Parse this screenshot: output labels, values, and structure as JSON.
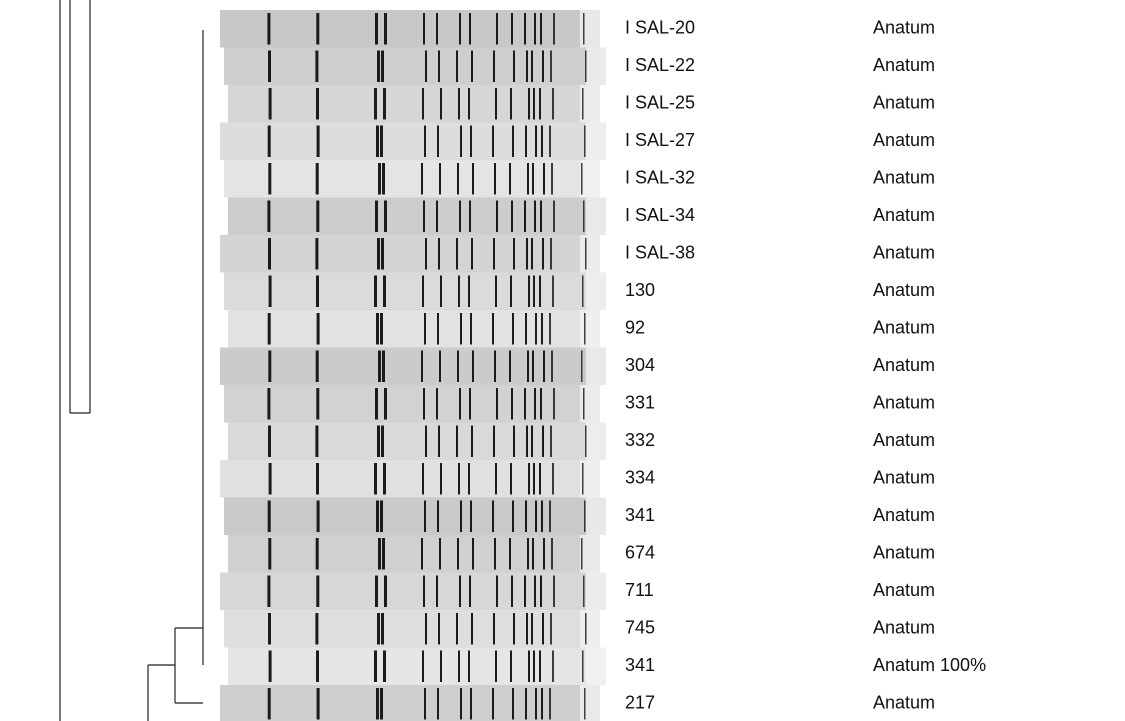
{
  "rows": [
    {
      "label": "I SAL-20",
      "serotype": "Anatum"
    },
    {
      "label": "I SAL-22",
      "serotype": "Anatum"
    },
    {
      "label": "I SAL-25",
      "serotype": "Anatum"
    },
    {
      "label": "I SAL-27",
      "serotype": "Anatum"
    },
    {
      "label": "I SAL-32",
      "serotype": "Anatum"
    },
    {
      "label": "I SAL-34",
      "serotype": "Anatum"
    },
    {
      "label": "I SAL-38",
      "serotype": "Anatum"
    },
    {
      "label": "130",
      "serotype": "Anatum"
    },
    {
      "label": "92",
      "serotype": "Anatum"
    },
    {
      "label": "304",
      "serotype": "Anatum"
    },
    {
      "label": "331",
      "serotype": "Anatum"
    },
    {
      "label": "332",
      "serotype": "Anatum"
    },
    {
      "label": "334",
      "serotype": "Anatum"
    },
    {
      "label": "341",
      "serotype": "Anatum"
    },
    {
      "label": "674",
      "serotype": "Anatum"
    },
    {
      "label": "711",
      "serotype": "Anatum"
    },
    {
      "label": "745",
      "serotype": "Anatum"
    },
    {
      "label": "341",
      "serotype": "Anatum 100%"
    },
    {
      "label": "217",
      "serotype": "Anatum"
    }
  ]
}
